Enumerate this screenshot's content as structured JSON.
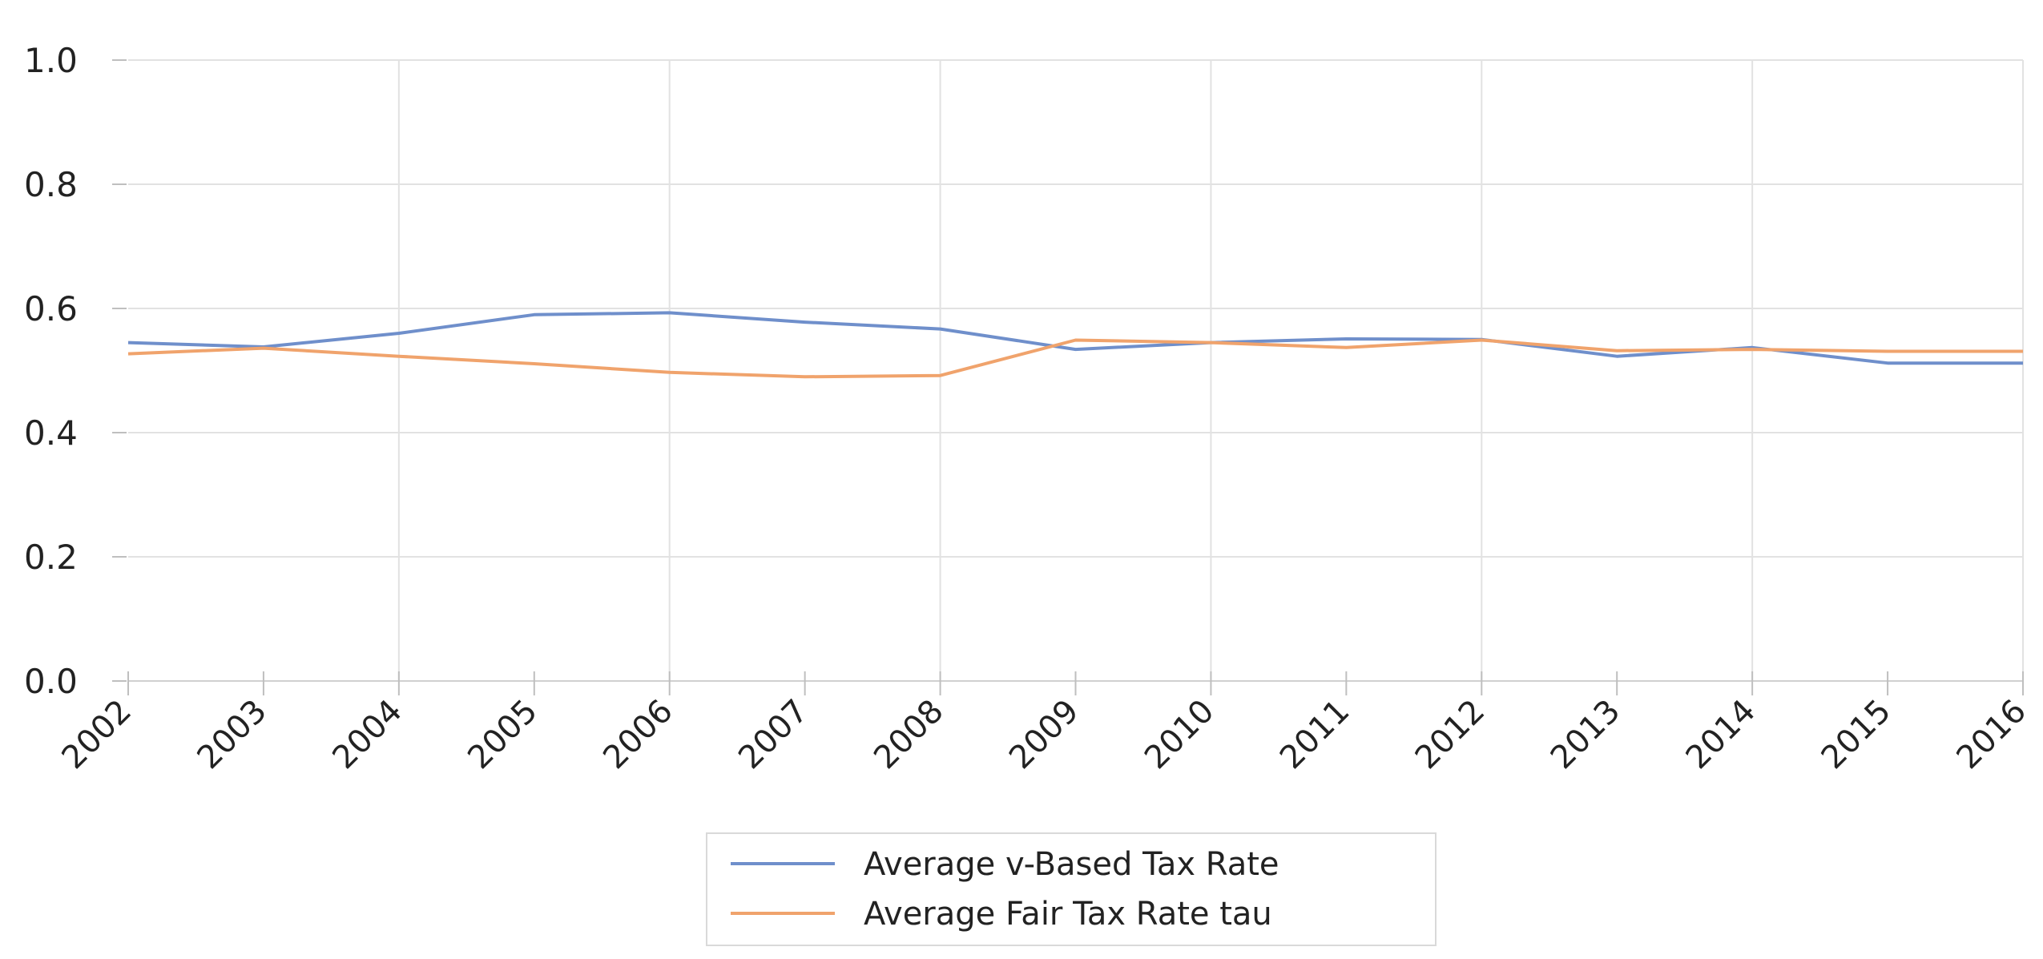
{
  "chart_data": {
    "type": "line",
    "title": "",
    "xlabel": "",
    "ylabel": "",
    "categories": [
      "2002",
      "2003",
      "2004",
      "2005",
      "2006",
      "2007",
      "2008",
      "2009",
      "2010",
      "2011",
      "2012",
      "2013",
      "2014",
      "2015",
      "2016"
    ],
    "ylim": [
      0.0,
      1.0
    ],
    "yticks": [
      "1.0",
      "0.8",
      "0.6",
      "0.4",
      "0.2",
      "0.0"
    ],
    "grid": true,
    "legend_position": "bottom-center",
    "series": [
      {
        "name": "Average v-Based Tax Rate",
        "color": "#6f8fcb",
        "values": [
          0.545,
          0.538,
          0.56,
          0.59,
          0.593,
          0.578,
          0.567,
          0.534,
          0.545,
          0.551,
          0.55,
          0.523,
          0.537,
          0.512,
          0.512
        ]
      },
      {
        "name": "Average Fair Tax Rate tau",
        "color": "#f0a36c",
        "values": [
          0.527,
          0.536,
          0.523,
          0.511,
          0.497,
          0.49,
          0.492,
          0.549,
          0.545,
          0.537,
          0.549,
          0.532,
          0.534,
          0.531,
          0.531
        ]
      }
    ]
  }
}
